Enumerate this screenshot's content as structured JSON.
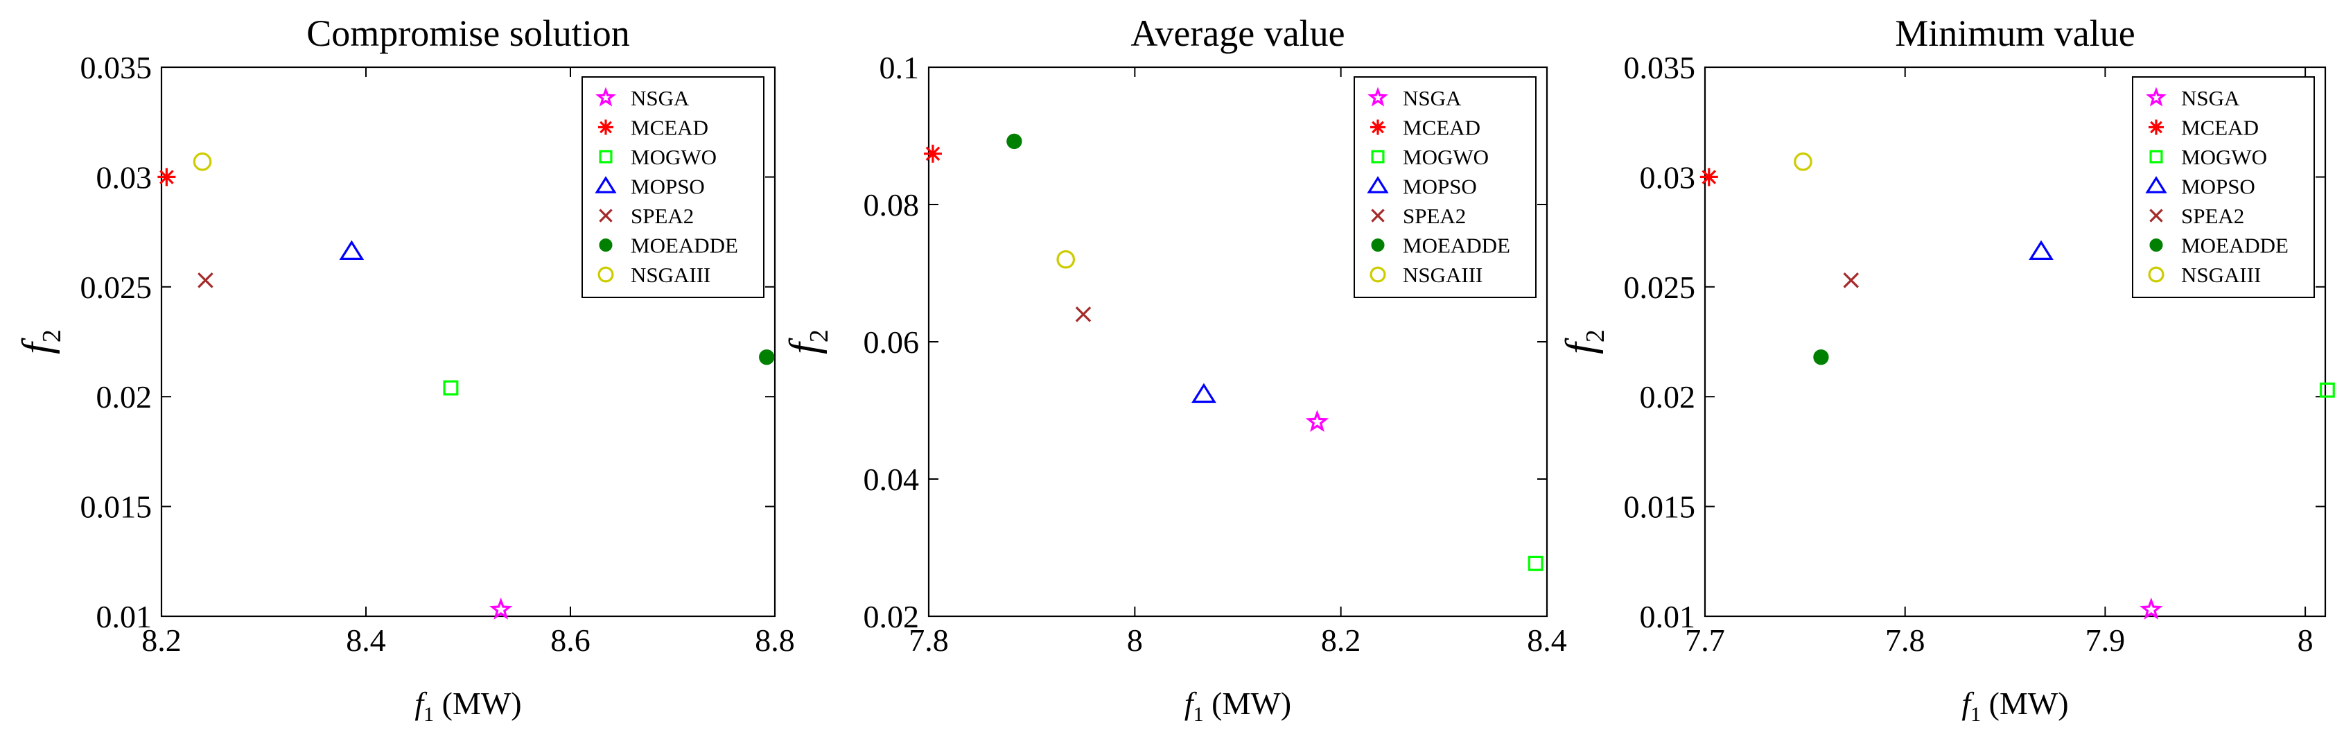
{
  "chart_data": [
    {
      "type": "scatter",
      "title": "Compromise solution",
      "xlabel_main": "f",
      "xlabel_sub": "1",
      "xlabel_unit": " (MW)",
      "ylabel_main": "f",
      "ylabel_sub": "2",
      "xlim": [
        8.2,
        8.8
      ],
      "ylim": [
        0.01,
        0.035
      ],
      "xticks": [
        8.2,
        8.4,
        8.6,
        8.8
      ],
      "xtick_labels": [
        "8.2",
        "8.4",
        "8.6",
        "8.8"
      ],
      "yticks": [
        0.01,
        0.015,
        0.02,
        0.025,
        0.03,
        0.035
      ],
      "ytick_labels": [
        "0.01",
        "0.015",
        "0.02",
        "0.025",
        "0.03",
        "0.035"
      ],
      "legend_position": "top-right",
      "series": [
        {
          "name": "NSGA",
          "x": 8.532,
          "y": 0.0103
        },
        {
          "name": "MCEAD",
          "x": 8.205,
          "y": 0.03
        },
        {
          "name": "MOGWO",
          "x": 8.483,
          "y": 0.0204
        },
        {
          "name": "MOPSO",
          "x": 8.386,
          "y": 0.0266
        },
        {
          "name": "SPEA2",
          "x": 8.243,
          "y": 0.0253
        },
        {
          "name": "MOEADDE",
          "x": 8.792,
          "y": 0.0218
        },
        {
          "name": "NSGAIII",
          "x": 8.24,
          "y": 0.0307
        }
      ]
    },
    {
      "type": "scatter",
      "title": "Average value",
      "xlabel_main": "f",
      "xlabel_sub": "1",
      "xlabel_unit": " (MW)",
      "ylabel_main": "f",
      "ylabel_sub": "2",
      "xlim": [
        7.8,
        8.4
      ],
      "ylim": [
        0.02,
        0.1
      ],
      "xticks": [
        7.8,
        8.0,
        8.2,
        8.4
      ],
      "xtick_labels": [
        "7.8",
        "8",
        "8.2",
        "8.4"
      ],
      "yticks": [
        0.02,
        0.04,
        0.06,
        0.08,
        0.1
      ],
      "ytick_labels": [
        "0.02",
        "0.04",
        "0.06",
        "0.08",
        "0.1"
      ],
      "legend_position": "top-right",
      "series": [
        {
          "name": "NSGA",
          "x": 8.177,
          "y": 0.0483
        },
        {
          "name": "MCEAD",
          "x": 7.804,
          "y": 0.0874
        },
        {
          "name": "MOGWO",
          "x": 8.389,
          "y": 0.0277
        },
        {
          "name": "MOPSO",
          "x": 8.067,
          "y": 0.0523
        },
        {
          "name": "SPEA2",
          "x": 7.95,
          "y": 0.064
        },
        {
          "name": "MOEADDE",
          "x": 7.883,
          "y": 0.0892
        },
        {
          "name": "NSGAIII",
          "x": 7.933,
          "y": 0.072
        }
      ]
    },
    {
      "type": "scatter",
      "title": "Minimum value",
      "xlabel_main": "f",
      "xlabel_sub": "1",
      "xlabel_unit": " (MW)",
      "ylabel_main": "f",
      "ylabel_sub": "2",
      "xlim": [
        7.7,
        8.01
      ],
      "ylim": [
        0.01,
        0.035
      ],
      "xticks": [
        7.7,
        7.8,
        7.9,
        8.0
      ],
      "xtick_labels": [
        "7.7",
        "7.8",
        "7.9",
        "8"
      ],
      "yticks": [
        0.01,
        0.015,
        0.02,
        0.025,
        0.03,
        0.035
      ],
      "ytick_labels": [
        "0.01",
        "0.015",
        "0.02",
        "0.025",
        "0.03",
        "0.035"
      ],
      "legend_position": "top-right",
      "series": [
        {
          "name": "NSGA",
          "x": 7.923,
          "y": 0.0103
        },
        {
          "name": "MCEAD",
          "x": 7.702,
          "y": 0.03
        },
        {
          "name": "MOGWO",
          "x": 8.011,
          "y": 0.0203
        },
        {
          "name": "MOPSO",
          "x": 7.868,
          "y": 0.0266
        },
        {
          "name": "SPEA2",
          "x": 7.773,
          "y": 0.0253
        },
        {
          "name": "MOEADDE",
          "x": 7.758,
          "y": 0.0218
        },
        {
          "name": "NSGAIII",
          "x": 7.749,
          "y": 0.0307
        }
      ]
    }
  ],
  "styles": {
    "NSGA": {
      "marker": "star",
      "color": "#ff00ff"
    },
    "MCEAD": {
      "marker": "asterisk",
      "color": "#ff0000"
    },
    "MOGWO": {
      "marker": "square",
      "color": "#00ff00"
    },
    "MOPSO": {
      "marker": "triangle",
      "color": "#0000ff"
    },
    "SPEA2": {
      "marker": "x",
      "color": "#a52a2a"
    },
    "MOEADDE": {
      "marker": "filled-circle",
      "color": "#008000"
    },
    "NSGAIII": {
      "marker": "circle",
      "color": "#cccc00"
    }
  }
}
